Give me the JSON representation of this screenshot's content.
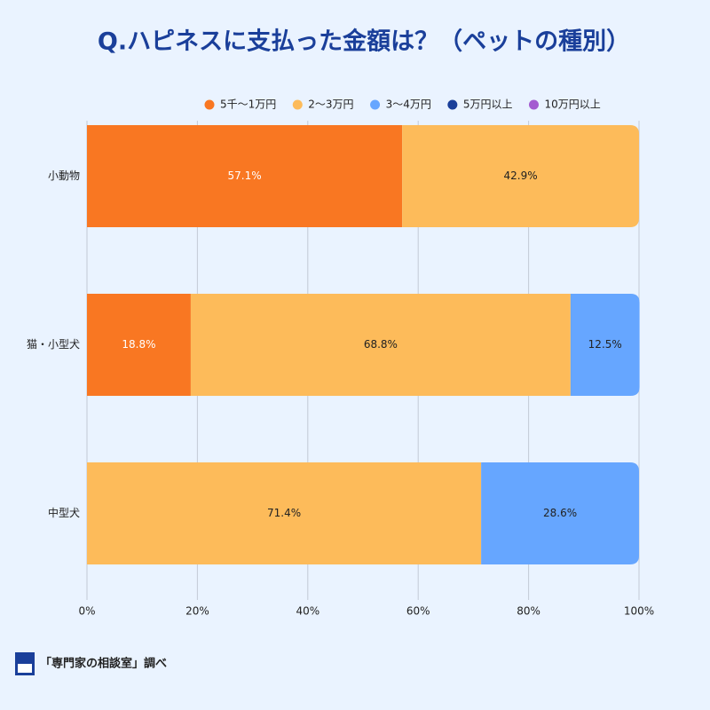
{
  "chart_data": {
    "type": "stacked-barh",
    "title": "Q.ハピネスに支払った金額は？（ペットの種別）",
    "categories": [
      "小動物",
      "猫・小型犬",
      "中型犬"
    ],
    "series": [
      {
        "name": "5千〜1万円",
        "color": "#f97722",
        "label_color": "#ffffff",
        "values": [
          57.1,
          18.8,
          0
        ],
        "value_labels": [
          "57.1%",
          "18.8%",
          null
        ]
      },
      {
        "name": "2〜3万円",
        "color": "#fdbb5a",
        "label_color": "#222222",
        "values": [
          42.9,
          68.8,
          71.4
        ],
        "value_labels": [
          "42.9%",
          "68.8%",
          "71.4%"
        ]
      },
      {
        "name": "3〜4万円",
        "color": "#66a6ff",
        "label_color": "#222222",
        "values": [
          0,
          12.5,
          28.6
        ],
        "value_labels": [
          null,
          "12.5%",
          "28.6%"
        ]
      },
      {
        "name": "5万円以上",
        "color": "#1a3f9a",
        "label_color": "#ffffff",
        "values": [
          0,
          0,
          0
        ],
        "value_labels": [
          null,
          null,
          null
        ]
      },
      {
        "name": "10万円以上",
        "color": "#a45bd0",
        "label_color": "#ffffff",
        "values": [
          0,
          0,
          0
        ],
        "value_labels": [
          null,
          null,
          null
        ]
      }
    ],
    "xlim": [
      0,
      100
    ],
    "xticks": [
      {
        "value": 0,
        "label": "0%"
      },
      {
        "value": 20,
        "label": "20%"
      },
      {
        "value": 40,
        "label": "40%"
      },
      {
        "value": 60,
        "label": "60%"
      },
      {
        "value": 80,
        "label": "80%"
      },
      {
        "value": 100,
        "label": "100%"
      }
    ],
    "grid": true,
    "legend": "top-right",
    "source": "「専門家の相談室」調べ"
  }
}
